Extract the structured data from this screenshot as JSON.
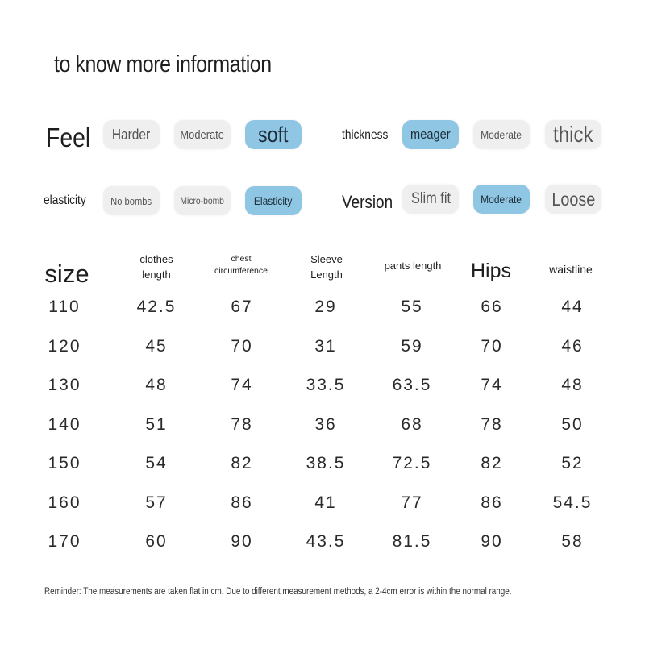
{
  "heading": "to know more information",
  "attributes": {
    "feel": {
      "label": "Feel",
      "options": [
        "Harder",
        "Moderate",
        "soft"
      ],
      "selected": "soft"
    },
    "thickness": {
      "label": "thickness",
      "options": [
        "meager",
        "Moderate",
        "thick"
      ],
      "selected": "meager"
    },
    "elasticity": {
      "label": "elasticity",
      "options": [
        "No bombs",
        "Micro-bomb",
        "Elasticity"
      ],
      "selected": "Elasticity"
    },
    "version": {
      "label": "Version",
      "options": [
        "Slim fit",
        "Moderate",
        "Loose"
      ],
      "selected": "Moderate"
    }
  },
  "size_table": {
    "headers": [
      "size",
      "clothes\nlength",
      "chest\ncircumference",
      "Sleeve\nLength",
      "pants length",
      "Hips",
      "waistline"
    ],
    "rows": [
      [
        "110",
        "42.5",
        "67",
        "29",
        "55",
        "66",
        "44"
      ],
      [
        "120",
        "45",
        "70",
        "31",
        "59",
        "70",
        "46"
      ],
      [
        "130",
        "48",
        "74",
        "33.5",
        "63.5",
        "74",
        "48"
      ],
      [
        "140",
        "51",
        "78",
        "36",
        "68",
        "78",
        "50"
      ],
      [
        "150",
        "54",
        "82",
        "38.5",
        "72.5",
        "82",
        "52"
      ],
      [
        "160",
        "57",
        "86",
        "41",
        "77",
        "86",
        "54.5"
      ],
      [
        "170",
        "60",
        "90",
        "43.5",
        "81.5",
        "90",
        "58"
      ]
    ]
  },
  "note": "Reminder: The measurements are taken flat in cm. Due to different measurement methods, a 2-4cm error is within the normal range.",
  "colors": {
    "selected": "#8fc6e4",
    "unselected": "#efefef"
  }
}
